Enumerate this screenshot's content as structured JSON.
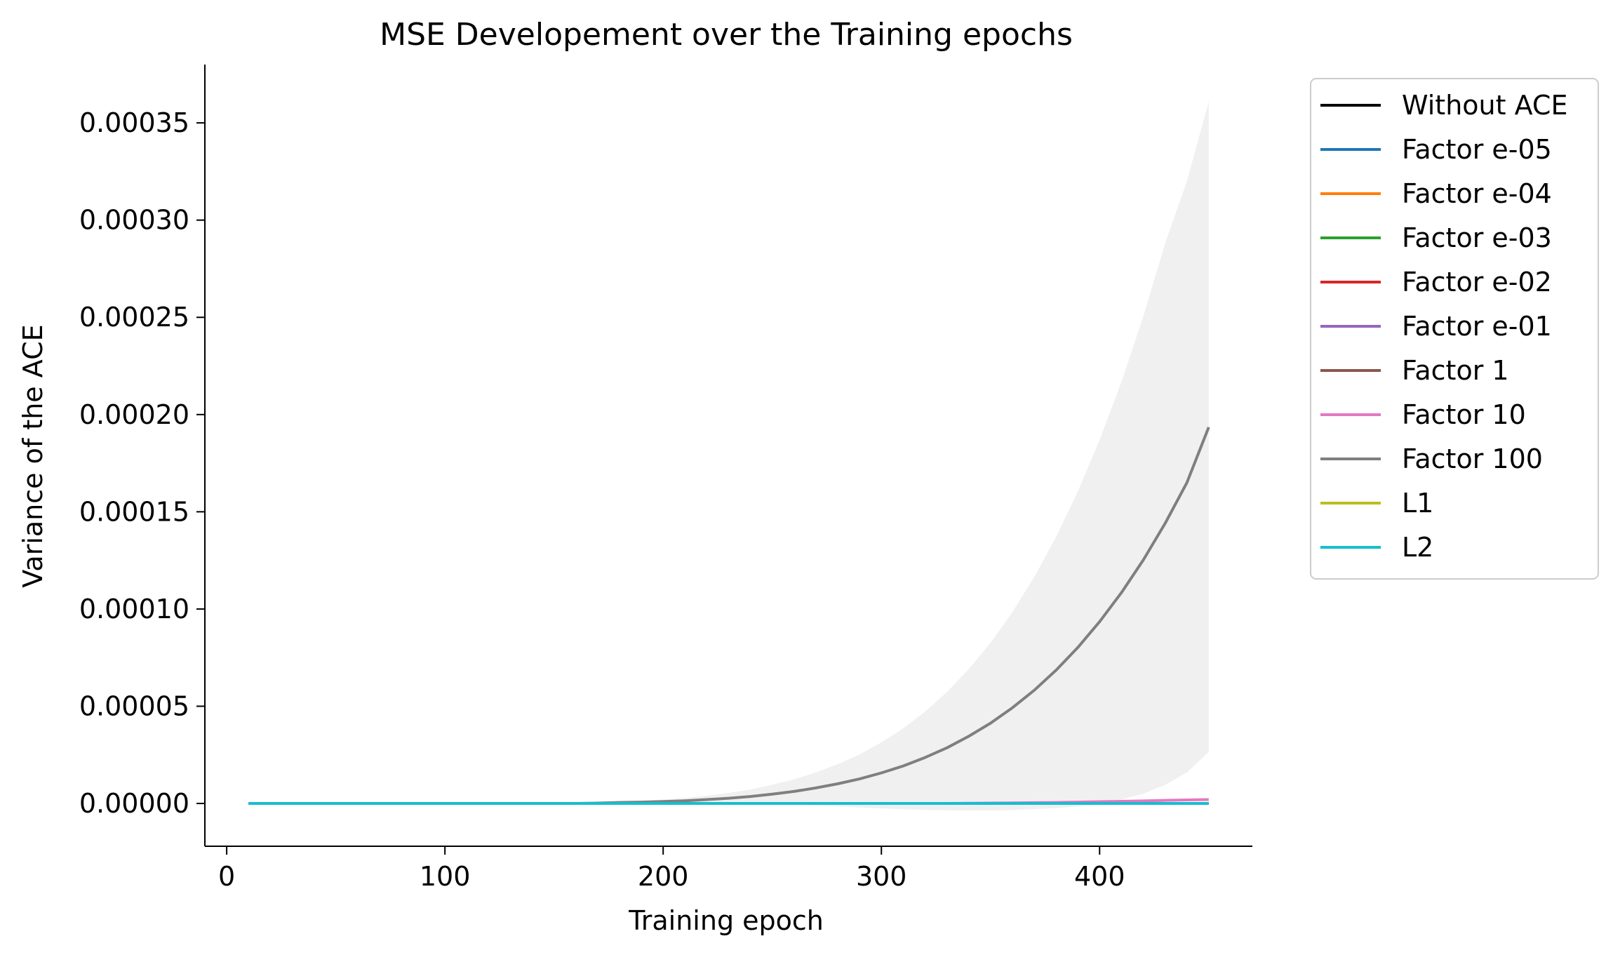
{
  "chart_data": {
    "type": "line",
    "title": "MSE Developement over the Training epochs",
    "xlabel": "Training epoch",
    "ylabel": "Variance of the ACE",
    "xlim": [
      -10,
      470
    ],
    "ylim": [
      -2.2e-05,
      0.00038
    ],
    "xticks": [
      0,
      100,
      200,
      300,
      400
    ],
    "xtick_labels": [
      "0",
      "100",
      "200",
      "300",
      "400"
    ],
    "yticks": [
      0,
      5e-05,
      0.0001,
      0.00015,
      0.0002,
      0.00025,
      0.0003,
      0.00035
    ],
    "ytick_labels": [
      "0.00000",
      "0.00005",
      "0.00010",
      "0.00015",
      "0.00020",
      "0.00025",
      "0.00030",
      "0.00035"
    ],
    "grid": false,
    "legend_position": "outside-top-right",
    "x": [
      10,
      20,
      30,
      40,
      50,
      60,
      70,
      80,
      90,
      100,
      110,
      120,
      130,
      140,
      150,
      160,
      170,
      180,
      190,
      200,
      210,
      220,
      230,
      240,
      250,
      260,
      270,
      280,
      290,
      300,
      310,
      320,
      330,
      340,
      350,
      360,
      370,
      380,
      390,
      400,
      410,
      420,
      430,
      440,
      450
    ],
    "series": [
      {
        "name": "Without ACE",
        "color": "#000000",
        "values": [
          0,
          0,
          0,
          0,
          0,
          0,
          0,
          0,
          0,
          0,
          0,
          0,
          0,
          0,
          0,
          0,
          0,
          0,
          0,
          0,
          0,
          0,
          0,
          0,
          0,
          0,
          0,
          0,
          0,
          0,
          0,
          0,
          0,
          0,
          0,
          0,
          0,
          0,
          0,
          0,
          0,
          0,
          0,
          0,
          0
        ]
      },
      {
        "name": "Factor e-05",
        "color": "#1f77b4",
        "values": [
          0,
          0,
          0,
          0,
          0,
          0,
          0,
          0,
          0,
          0,
          0,
          0,
          0,
          0,
          0,
          0,
          0,
          0,
          0,
          0,
          0,
          0,
          0,
          0,
          0,
          0,
          0,
          0,
          0,
          0,
          0,
          0,
          0,
          0,
          0,
          0,
          0,
          0,
          0,
          0,
          0,
          0,
          0,
          0,
          0
        ]
      },
      {
        "name": "Factor e-04",
        "color": "#ff7f0e",
        "values": [
          0,
          0,
          0,
          0,
          0,
          0,
          0,
          0,
          0,
          0,
          0,
          0,
          0,
          0,
          0,
          0,
          0,
          0,
          0,
          0,
          0,
          0,
          0,
          0,
          0,
          0,
          0,
          0,
          0,
          0,
          0,
          0,
          0,
          0,
          0,
          0,
          0,
          0,
          0,
          0,
          0,
          0,
          0,
          0,
          0
        ]
      },
      {
        "name": "Factor e-03",
        "color": "#2ca02c",
        "values": [
          0,
          0,
          0,
          0,
          0,
          0,
          0,
          0,
          0,
          0,
          0,
          0,
          0,
          0,
          0,
          0,
          0,
          0,
          0,
          0,
          0,
          0,
          0,
          0,
          0,
          0,
          0,
          0,
          0,
          0,
          0,
          0,
          0,
          0,
          0,
          0,
          0,
          0,
          0,
          0,
          0,
          0,
          0,
          0,
          0
        ]
      },
      {
        "name": "Factor e-02",
        "color": "#d62728",
        "values": [
          0,
          0,
          0,
          0,
          0,
          0,
          0,
          0,
          0,
          0,
          0,
          0,
          0,
          0,
          0,
          0,
          0,
          0,
          0,
          0,
          0,
          0,
          0,
          0,
          0,
          0,
          0,
          0,
          0,
          0,
          0,
          0,
          0,
          0,
          0,
          0,
          0,
          0,
          0,
          0,
          0,
          0,
          0,
          0,
          0
        ]
      },
      {
        "name": "Factor e-01",
        "color": "#9467bd",
        "values": [
          0,
          0,
          0,
          0,
          0,
          0,
          0,
          0,
          0,
          0,
          0,
          0,
          0,
          0,
          0,
          0,
          0,
          0,
          0,
          0,
          0,
          0,
          0,
          0,
          0,
          0,
          0,
          0,
          0,
          0,
          0,
          0,
          0,
          0,
          0,
          0,
          0,
          0,
          0,
          0,
          0,
          0,
          0,
          0,
          0
        ]
      },
      {
        "name": "Factor 1",
        "color": "#8c564b",
        "values": [
          0,
          0,
          0,
          0,
          0,
          0,
          0,
          0,
          0,
          0,
          0,
          0,
          0,
          0,
          0,
          0,
          0,
          0,
          0,
          0,
          0,
          0,
          0,
          0,
          0,
          0,
          0,
          0,
          0,
          0,
          0,
          0,
          0,
          0,
          0,
          0,
          0,
          0,
          0,
          0,
          0,
          0,
          0,
          0,
          0
        ]
      },
      {
        "name": "Factor 10",
        "color": "#e377c2",
        "values": [
          0,
          0,
          0,
          0,
          0,
          0,
          0,
          0,
          0,
          0,
          0,
          0,
          0,
          0,
          0,
          0,
          0,
          0,
          0,
          0,
          0,
          0,
          0,
          0,
          0,
          0,
          0,
          0,
          0,
          0,
          0,
          0,
          0,
          1e-07,
          2e-07,
          3e-07,
          4e-07,
          5e-07,
          7e-07,
          9e-07,
          1.1e-06,
          1.3e-06,
          1.6e-06,
          1.8e-06,
          2e-06
        ]
      },
      {
        "name": "Factor 100",
        "color": "#7f7f7f",
        "values": [
          0,
          0,
          0,
          0,
          0,
          0,
          0,
          0,
          0,
          0,
          0,
          0,
          0,
          0,
          0,
          0,
          2e-07,
          5e-07,
          7e-07,
          1e-06,
          1.4e-06,
          2e-06,
          2.7e-06,
          3.6e-06,
          4.8e-06,
          6.2e-06,
          8e-06,
          1.01e-05,
          1.26e-05,
          1.57e-05,
          1.93e-05,
          2.36e-05,
          2.86e-05,
          3.45e-05,
          4.13e-05,
          4.92e-05,
          5.82e-05,
          6.85e-05,
          8.02e-05,
          9.35e-05,
          0.0001084,
          0.0001252,
          0.000144,
          0.000165,
          0.0001935
        ],
        "band_low": [
          0,
          0,
          0,
          0,
          0,
          0,
          0,
          0,
          0,
          0,
          0,
          0,
          0,
          0,
          0,
          0,
          0,
          0,
          0,
          0,
          0,
          0,
          0,
          0,
          0,
          -5e-07,
          -1e-06,
          -1.5e-06,
          -2e-06,
          -2.5e-06,
          -3e-06,
          -3.3e-06,
          -3.5e-06,
          -3.6e-06,
          -3.6e-06,
          -3.4e-06,
          -3e-06,
          -2.4e-06,
          -1.5e-06,
          -2e-07,
          2e-06,
          5e-06,
          9.5e-06,
          1.6e-05,
          2.65e-05
        ],
        "band_high": [
          0,
          0,
          0,
          0,
          0,
          0,
          0,
          0,
          0,
          0,
          0,
          0,
          0,
          0,
          0,
          1e-07,
          4e-07,
          1e-06,
          1.4e-06,
          2e-06,
          2.8e-06,
          4e-06,
          5.4e-06,
          7.2e-06,
          9.6e-06,
          1.24e-05,
          1.6e-05,
          2.02e-05,
          2.52e-05,
          3.14e-05,
          3.86e-05,
          4.72e-05,
          5.72e-05,
          6.9e-05,
          8.26e-05,
          9.84e-05,
          0.0001164,
          0.000137,
          0.0001604,
          0.000187,
          0.0002168,
          0.0002504,
          0.000288,
          0.00032,
          0.000361
        ]
      },
      {
        "name": "L1",
        "color": "#bcbd22",
        "values": [
          0,
          0,
          0,
          0,
          0,
          0,
          0,
          0,
          0,
          0,
          0,
          0,
          0,
          0,
          0,
          0,
          0,
          0,
          0,
          0,
          0,
          0,
          0,
          0,
          0,
          0,
          0,
          0,
          0,
          0,
          0,
          0,
          0,
          0,
          0,
          0,
          0,
          0,
          0,
          0,
          0,
          0,
          0,
          0,
          0
        ]
      },
      {
        "name": "L2",
        "color": "#17becf",
        "values": [
          0,
          0,
          0,
          0,
          0,
          0,
          0,
          0,
          0,
          0,
          0,
          0,
          0,
          0,
          0,
          0,
          0,
          0,
          0,
          0,
          0,
          0,
          0,
          0,
          0,
          0,
          0,
          0,
          0,
          0,
          0,
          0,
          0,
          0,
          0,
          0,
          0,
          0,
          0,
          0,
          0,
          0,
          0,
          0,
          0
        ]
      }
    ]
  }
}
